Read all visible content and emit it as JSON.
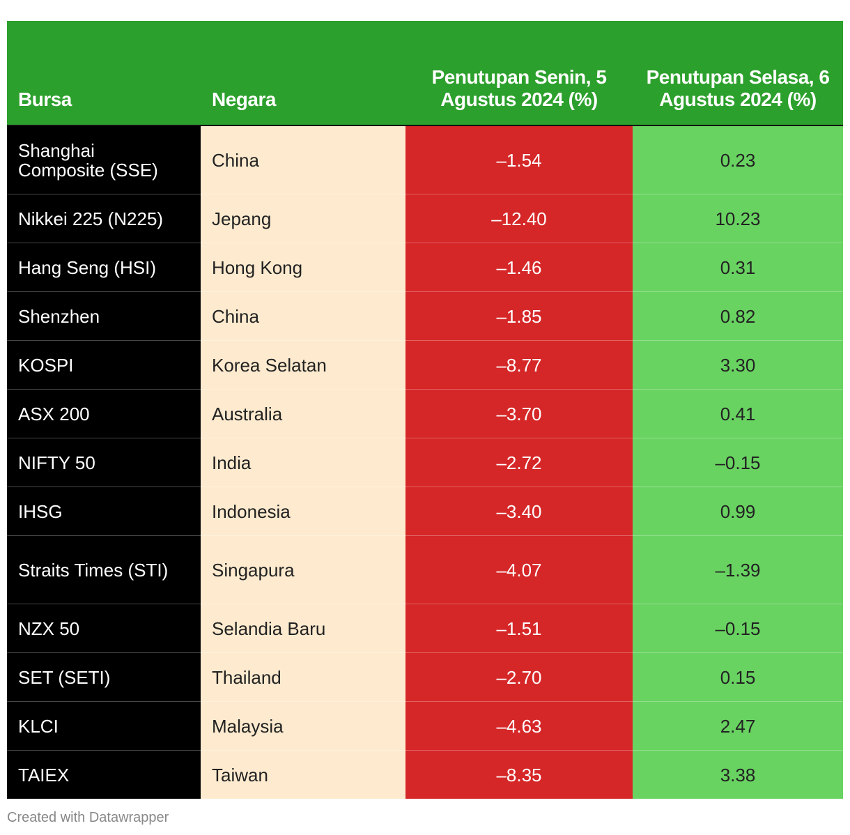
{
  "table": {
    "headers": [
      "Bursa",
      "Negara",
      "Penutupan Senin, 5 Agustus 2024 (%)",
      "Penutupan Selasa, 6 Agustus 2024 (%)"
    ],
    "colors": {
      "header": "#2ca02c",
      "bursa_col": "#000000",
      "negara_col": "#feebcf",
      "monday_col": "#d62728",
      "tuesday_col": "#69d362"
    }
  },
  "chart_data": {
    "type": "table",
    "columns": [
      "Bursa",
      "Negara",
      "Penutupan Senin, 5 Agustus 2024 (%)",
      "Penutupan Selasa, 6 Agustus 2024 (%)"
    ],
    "rows": [
      {
        "bursa": "Shanghai Composite (SSE)",
        "negara": "China",
        "senin": "–1.54",
        "selasa": "0.23"
      },
      {
        "bursa": "Nikkei 225 (N225)",
        "negara": "Jepang",
        "senin": "–12.40",
        "selasa": "10.23"
      },
      {
        "bursa": "Hang Seng (HSI)",
        "negara": "Hong Kong",
        "senin": "–1.46",
        "selasa": "0.31"
      },
      {
        "bursa": "Shenzhen",
        "negara": "China",
        "senin": "–1.85",
        "selasa": "0.82"
      },
      {
        "bursa": "KOSPI",
        "negara": "Korea Selatan",
        "senin": "–8.77",
        "selasa": "3.30"
      },
      {
        "bursa": "ASX 200",
        "negara": "Australia",
        "senin": "–3.70",
        "selasa": "0.41"
      },
      {
        "bursa": "NIFTY 50",
        "negara": "India",
        "senin": "–2.72",
        "selasa": "–0.15"
      },
      {
        "bursa": "IHSG",
        "negara": "Indonesia",
        "senin": "–3.40",
        "selasa": "0.99"
      },
      {
        "bursa": "Straits Times (STI)",
        "negara": "Singapura",
        "senin": "–4.07",
        "selasa": "–1.39"
      },
      {
        "bursa": "NZX 50",
        "negara": "Selandia Baru",
        "senin": "–1.51",
        "selasa": "–0.15"
      },
      {
        "bursa": "SET (SETI)",
        "negara": "Thailand",
        "senin": "–2.70",
        "selasa": "0.15"
      },
      {
        "bursa": "KLCI",
        "negara": "Malaysia",
        "senin": "–4.63",
        "selasa": "2.47"
      },
      {
        "bursa": "TAIEX",
        "negara": "Taiwan",
        "senin": "–8.35",
        "selasa": "3.38"
      }
    ]
  },
  "footer": "Created with Datawrapper"
}
